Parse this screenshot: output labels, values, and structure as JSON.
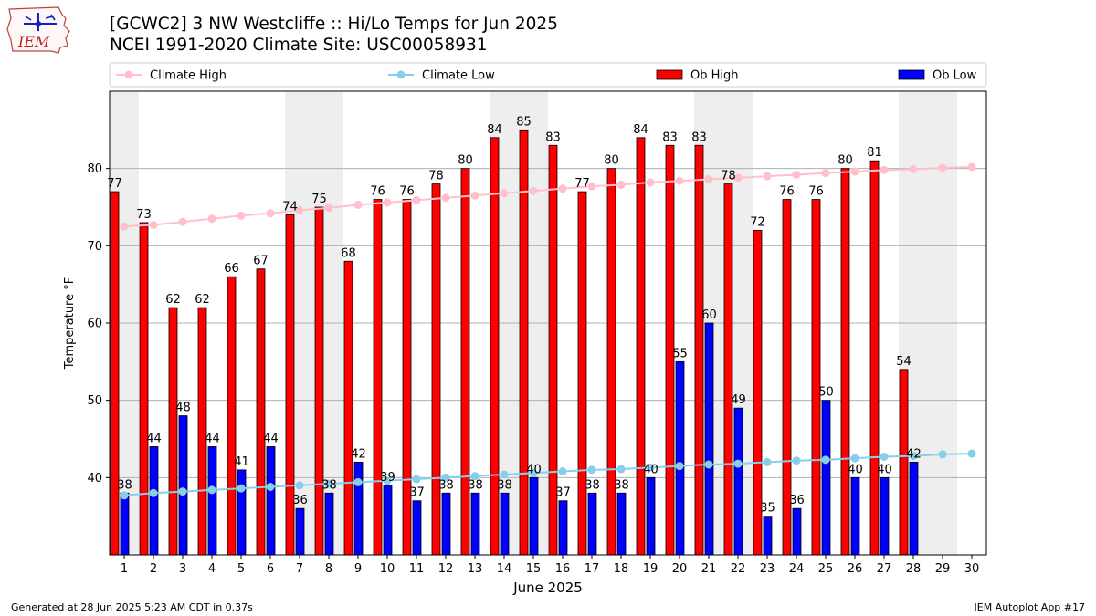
{
  "header": {
    "logo_text": "IEM",
    "title_line1": "[GCWC2] 3 NW Westcliffe :: Hi/Lo Temps for Jun 2025",
    "title_line2": "NCEI 1991-2020 Climate Site: USC00058931"
  },
  "footer": {
    "generated": "Generated at 28 Jun 2025 5:23 AM CDT in 0.37s",
    "app": "IEM Autoplot App #17"
  },
  "colors": {
    "climate_high": "#ffc0cb",
    "climate_low": "#87ceeb",
    "ob_high": "#ff0000",
    "ob_low": "#0000ff",
    "weekend_shade": "#eeeeee",
    "grid": "#b0b0b0"
  },
  "chart_data": {
    "type": "bar",
    "title": "[GCWC2] 3 NW Westcliffe :: Hi/Lo Temps for Jun 2025",
    "subtitle": "NCEI 1991-2020 Climate Site: USC00058931",
    "xlabel": "June 2025",
    "ylabel": "Temperature °F",
    "ylim": [
      30,
      90
    ],
    "yticks": [
      40,
      50,
      60,
      70,
      80
    ],
    "grid": true,
    "legend_position": "top",
    "x": [
      "1",
      "2",
      "3",
      "4",
      "5",
      "6",
      "7",
      "8",
      "9",
      "10",
      "11",
      "12",
      "13",
      "14",
      "15",
      "16",
      "17",
      "18",
      "19",
      "20",
      "21",
      "22",
      "23",
      "24",
      "25",
      "26",
      "27",
      "28",
      "29",
      "30"
    ],
    "weekend_days": [
      1,
      7,
      8,
      14,
      15,
      21,
      22,
      28,
      29
    ],
    "series": [
      {
        "name": "Climate High",
        "kind": "line",
        "values": [
          72.5,
          72.7,
          73.1,
          73.5,
          73.9,
          74.2,
          74.6,
          74.9,
          75.3,
          75.6,
          75.9,
          76.2,
          76.5,
          76.8,
          77.1,
          77.4,
          77.7,
          77.9,
          78.2,
          78.4,
          78.6,
          78.8,
          79.0,
          79.2,
          79.4,
          79.6,
          79.8,
          79.9,
          80.1,
          80.2
        ]
      },
      {
        "name": "Climate Low",
        "kind": "line",
        "values": [
          37.7,
          38.0,
          38.2,
          38.4,
          38.6,
          38.8,
          39.0,
          39.2,
          39.4,
          39.6,
          39.8,
          40.0,
          40.2,
          40.4,
          40.6,
          40.8,
          41.0,
          41.1,
          41.3,
          41.5,
          41.7,
          41.8,
          42.0,
          42.2,
          42.3,
          42.5,
          42.7,
          42.8,
          43.0,
          43.1
        ]
      },
      {
        "name": "Ob High",
        "kind": "bar",
        "values": [
          77,
          73,
          62,
          62,
          66,
          67,
          74,
          75,
          68,
          76,
          76,
          78,
          80,
          84,
          85,
          83,
          77,
          80,
          84,
          83,
          83,
          78,
          72,
          76,
          76,
          80,
          81,
          54,
          null,
          null
        ]
      },
      {
        "name": "Ob Low",
        "kind": "bar",
        "values": [
          38,
          44,
          48,
          44,
          41,
          44,
          36,
          38,
          42,
          39,
          37,
          38,
          38,
          38,
          40,
          37,
          38,
          38,
          40,
          55,
          60,
          49,
          35,
          36,
          50,
          40,
          40,
          42,
          null,
          null
        ]
      }
    ]
  }
}
